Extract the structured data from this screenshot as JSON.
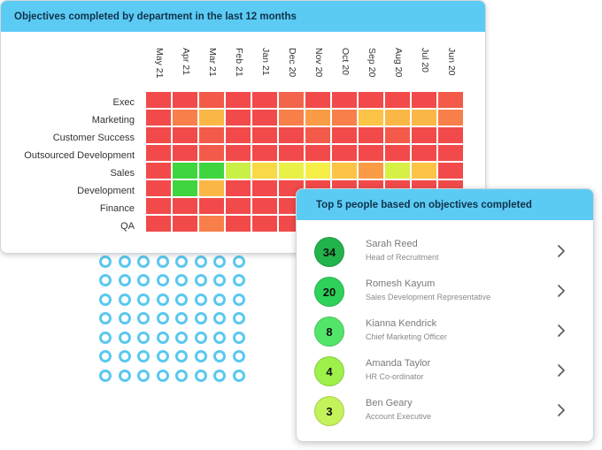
{
  "heatmap": {
    "title": "Objectives completed by department in the last 12 months",
    "months": [
      "May 21",
      "Apr 21",
      "Mar 21",
      "Feb 21",
      "Jan 21",
      "Dec 20",
      "Nov 20",
      "Oct 20",
      "Sep 20",
      "Aug 20",
      "Jul 20",
      "Jun 20"
    ],
    "departments": [
      "Exec",
      "Marketing",
      "Customer Success",
      "Outsourced Development",
      "Sales",
      "Development",
      "Finance",
      "QA"
    ],
    "cell_colors": [
      [
        "#f24a4a",
        "#f24a4a",
        "#f35a4a",
        "#f24a4a",
        "#f24a4a",
        "#f3654a",
        "#f24a4a",
        "#f24a4a",
        "#f24a4a",
        "#f24a4a",
        "#f24a4a",
        "#f35a4a"
      ],
      [
        "#f24a4a",
        "#f87f4a",
        "#fbb746",
        "#f24a4a",
        "#f24a4a",
        "#f87f4a",
        "#fa9c46",
        "#f87f4a",
        "#fbc446",
        "#fbb746",
        "#fbb746",
        "#f87f4a"
      ],
      [
        "#f24a4a",
        "#f24a4a",
        "#f35a4a",
        "#f24a4a",
        "#f24a4a",
        "#f24a4a",
        "#f35a4a",
        "#f24a4a",
        "#f24a4a",
        "#f35a4a",
        "#f24a4a",
        "#f24a4a"
      ],
      [
        "#f24a4a",
        "#f24a4a",
        "#f35a4a",
        "#f24a4a",
        "#f24a4a",
        "#f24a4a",
        "#f24a4a",
        "#f24a4a",
        "#f24a4a",
        "#f24a4a",
        "#f24a4a",
        "#f24a4a"
      ],
      [
        "#f24a4a",
        "#3fd53f",
        "#3fd53f",
        "#c8f046",
        "#f8d946",
        "#e9f046",
        "#f6ee46",
        "#fbc446",
        "#fa9c46",
        "#d8f046",
        "#fbc446",
        "#f24a4a"
      ],
      [
        "#f24a4a",
        "#3fd53f",
        "#fbb746",
        "#f24a4a",
        "#f24a4a",
        "#f24a4a",
        "#f24a4a",
        "#f24a4a",
        "#f24a4a",
        "#f24a4a",
        "#f24a4a",
        "#f24a4a"
      ],
      [
        "#f24a4a",
        "#f24a4a",
        "#f24a4a",
        "#f24a4a",
        "#f24a4a",
        "#f24a4a",
        "#f24a4a",
        "#f24a4a",
        "#f24a4a",
        "#f24a4a",
        "#f24a4a",
        "#f24a4a"
      ],
      [
        "#f24a4a",
        "#f24a4a",
        "#f87f4a",
        "#f24a4a",
        "#f24a4a",
        "#f24a4a",
        "#f24a4a",
        "#f24a4a",
        "#f24a4a",
        "#f24a4a",
        "#f24a4a",
        "#f24a4a"
      ]
    ]
  },
  "top5": {
    "title": "Top 5 people based on objectives completed",
    "people": [
      {
        "count": "34",
        "name": "Sarah Reed",
        "role": "Head of Recruitment",
        "color": "#22b34a"
      },
      {
        "count": "20",
        "name": "Romesh Kayum",
        "role": "Sales Development Representative",
        "color": "#2ed15a"
      },
      {
        "count": "8",
        "name": "Kianna Kendrick",
        "role": "Chief Marketing Officer",
        "color": "#52e56a"
      },
      {
        "count": "4",
        "name": "Amanda Taylor",
        "role": "HR Co-ordinator",
        "color": "#9ef04a"
      },
      {
        "count": "3",
        "name": "Ben Geary",
        "role": "Account Executive",
        "color": "#c4f25a"
      }
    ],
    "chevron_icon": "chevron-right-icon"
  },
  "decor": {
    "dot_color": "#5ac8f0"
  }
}
